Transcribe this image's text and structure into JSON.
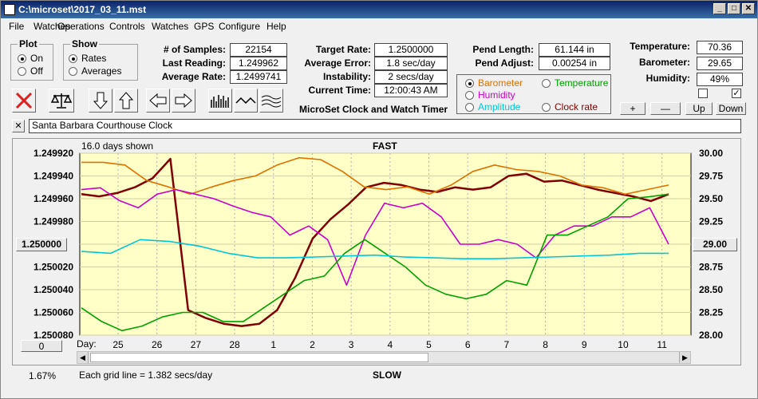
{
  "window": {
    "title": "C:\\microset\\2017_03_11.mst"
  },
  "menu": [
    "File",
    "Watches",
    "Operations",
    "Controls",
    "Watches",
    "GPS",
    "Configure",
    "Help"
  ],
  "plot_group": {
    "title": "Plot",
    "on": "On",
    "off": "Off"
  },
  "show_group": {
    "title": "Show",
    "rates": "Rates",
    "averages": "Averages"
  },
  "stats": {
    "samples_label": "# of Samples:",
    "samples": "22154",
    "last_label": "Last Reading:",
    "last": "1.249962",
    "avg_label": "Average Rate:",
    "avg": "1.2499741",
    "target_label": "Target Rate:",
    "target": "1.2500000",
    "avgerr_label": "Average Error:",
    "avgerr": "1.8 sec/day",
    "instab_label": "Instability:",
    "instab": "2 secs/day",
    "time_label": "Current Time:",
    "time": "12:00:43 AM",
    "pendlen_label": "Pend Length:",
    "pendlen": "61.144 in",
    "pendadj_label": "Pend Adjust:",
    "pendadj": "0.00254 in",
    "temp_label": "Temperature:",
    "temp": "70.36",
    "baro_label": "Barometer:",
    "baro": "29.65",
    "hum_label": "Humidity:",
    "hum": "49%"
  },
  "subtitle": "MicroSet Clock and Watch Timer",
  "overlay": {
    "barometer": "Barometer",
    "temperature": "Temperature",
    "humidity": "Humidity",
    "amplitude": "Amplitude",
    "clockrate": "Clock rate",
    "colors": {
      "barometer": "#e07000",
      "temperature": "#00a000",
      "humidity": "#cc00cc",
      "amplitude": "#00c8d8",
      "clockrate": "#800000"
    }
  },
  "buttons": {
    "plus": "+",
    "minus": "—",
    "up": "Up",
    "down": "Down",
    "center_rate": "1.250000",
    "right_value": "29.00",
    "zero": "0"
  },
  "clock_name": "Santa Barbara Courthouse Clock",
  "chart_top": {
    "days_shown": "16.0 days shown",
    "fast": "FAST"
  },
  "chart_bottom": {
    "percent": "1.67%",
    "grid": "Each grid line = 1.382 secs/day",
    "slow": "SLOW",
    "day_label": "Day:"
  },
  "chart_data": {
    "type": "line",
    "y_left_ticks": [
      "1.249920",
      "1.249940",
      "1.249960",
      "1.249980",
      "1.250000",
      "1.250020",
      "1.250040",
      "1.250060",
      "1.250080"
    ],
    "y_right_ticks": [
      "30.00",
      "29.75",
      "29.50",
      "29.25",
      "29.00",
      "28.75",
      "28.50",
      "28.25",
      "28.00"
    ],
    "x_ticks": [
      "25",
      "26",
      "27",
      "28",
      "1",
      "2",
      "3",
      "4",
      "5",
      "6",
      "7",
      "8",
      "9",
      "10",
      "11"
    ],
    "series": [
      {
        "name": "Clock rate",
        "color": "#800000",
        "values": [
          1.249956,
          1.249958,
          1.249955,
          1.24995,
          1.249942,
          1.249925,
          1.250058,
          1.250065,
          1.25007,
          1.250072,
          1.25007,
          1.250058,
          1.25003,
          1.249995,
          1.249978,
          1.249965,
          1.24995,
          1.249946,
          1.249948,
          1.249952,
          1.249954,
          1.24995,
          1.249952,
          1.24995,
          1.24994,
          1.249938,
          1.249945,
          1.249944,
          1.249948,
          1.249952,
          1.249955,
          1.249958,
          1.249962,
          1.249956
        ]
      },
      {
        "name": "Barometer",
        "color": "#e07000",
        "values": [
          29.9,
          29.9,
          29.87,
          29.7,
          29.63,
          29.55,
          29.63,
          29.7,
          29.75,
          29.87,
          29.95,
          29.93,
          29.8,
          29.63,
          29.6,
          29.63,
          29.55,
          29.65,
          29.8,
          29.87,
          29.82,
          29.8,
          29.75,
          29.65,
          29.62,
          29.55,
          29.6,
          29.65
        ]
      },
      {
        "name": "Humidity",
        "color": "#cc00cc",
        "values": [
          29.6,
          29.62,
          29.48,
          29.4,
          29.55,
          29.6,
          29.55,
          29.5,
          29.42,
          29.35,
          29.3,
          29.1,
          29.2,
          29.05,
          28.55,
          29.1,
          29.45,
          29.4,
          29.45,
          29.3,
          29.0,
          29.0,
          29.05,
          29.0,
          28.85,
          29.1,
          29.2,
          29.2,
          29.3,
          29.3,
          29.4,
          29.0
        ]
      },
      {
        "name": "Temperature",
        "color": "#00a000",
        "values": [
          28.3,
          28.15,
          28.05,
          28.1,
          28.2,
          28.25,
          28.25,
          28.15,
          28.15,
          28.3,
          28.45,
          28.6,
          28.65,
          28.9,
          29.05,
          28.9,
          28.75,
          28.55,
          28.45,
          28.4,
          28.45,
          28.6,
          28.55,
          29.1,
          29.1,
          29.2,
          29.3,
          29.5,
          29.52,
          29.55
        ]
      },
      {
        "name": "Amplitude",
        "color": "#00c8d8",
        "values": [
          28.92,
          28.9,
          29.05,
          29.03,
          28.98,
          28.9,
          28.85,
          28.85,
          28.86,
          28.87,
          28.88,
          28.86,
          28.85,
          28.84,
          28.84,
          28.85,
          28.86,
          28.87,
          28.88,
          28.9,
          28.9
        ]
      }
    ]
  }
}
